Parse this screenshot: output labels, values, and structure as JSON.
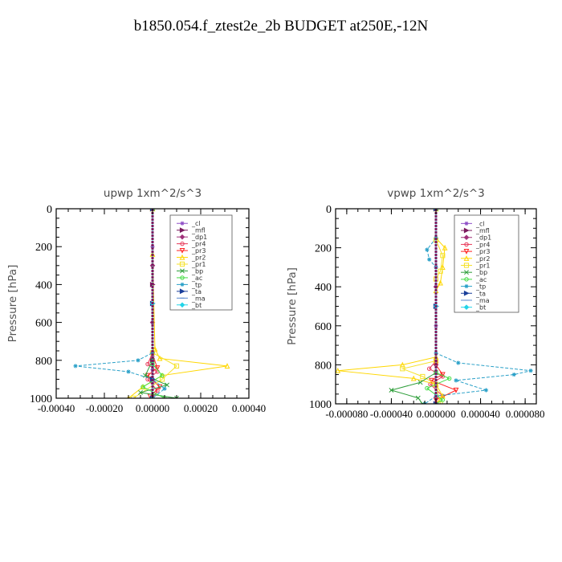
{
  "page_title": "b1850.054.f_ztest2e_2b  BUDGET at250E,-12N",
  "chart_data": [
    {
      "type": "line",
      "title": "upwp   1xm^2/s^3",
      "ylabel": "Pressure [hPa]",
      "xlabel": "",
      "xlim": [
        -0.0004,
        0.0004
      ],
      "ylim": [
        1000,
        0
      ],
      "x_ticks": [
        "-0.00040",
        "-0.00020",
        "0.00000",
        "0.00020",
        "0.00040"
      ],
      "y_ticks": [
        "0",
        "200",
        "400",
        "600",
        "800",
        "1000"
      ],
      "legend_position": "top-right",
      "series": [
        {
          "name": "_cl",
          "color": "#8f4fc7",
          "marker": "star",
          "points": [
            [
              0,
              0
            ],
            [
              0,
              200
            ],
            [
              0,
              400
            ],
            [
              0,
              600
            ],
            [
              0,
              780
            ],
            [
              0,
              850
            ],
            [
              0,
              920
            ],
            [
              0,
              1000
            ]
          ]
        },
        {
          "name": "_mfl",
          "color": "#7b1a5e",
          "marker": "tri-right",
          "points": [
            [
              0,
              0
            ],
            [
              0,
              400
            ],
            [
              0,
              800
            ],
            [
              0,
              1000
            ]
          ]
        },
        {
          "name": "_dp1",
          "color": "#a0307a",
          "marker": "diamond",
          "points": [
            [
              0,
              0
            ],
            [
              0,
              300
            ],
            [
              0,
              600
            ],
            [
              0,
              900
            ],
            [
              0,
              1000
            ]
          ]
        },
        {
          "name": "_pr4",
          "color": "#e83a5a",
          "marker": "circle",
          "points": [
            [
              0,
              0
            ],
            [
              0,
              760
            ],
            [
              -2e-05,
              820
            ],
            [
              2e-05,
              860
            ],
            [
              -2e-05,
              900
            ],
            [
              2e-05,
              960
            ],
            [
              0,
              1000
            ]
          ]
        },
        {
          "name": "_pr3",
          "color": "#ff2222",
          "marker": "tri-down",
          "points": [
            [
              0,
              0
            ],
            [
              0,
              770
            ],
            [
              2e-05,
              840
            ],
            [
              -2e-05,
              880
            ],
            [
              3e-05,
              940
            ],
            [
              -1e-05,
              990
            ]
          ]
        },
        {
          "name": "_pr2",
          "color": "#ffd700",
          "marker": "tri-up",
          "points": [
            [
              0,
              0
            ],
            [
              0,
              240
            ],
            [
              1e-05,
              740
            ],
            [
              3e-05,
              790
            ],
            [
              0.00031,
              830
            ],
            [
              4e-05,
              880
            ],
            [
              -4e-05,
              940
            ],
            [
              -0.0001,
              1000
            ]
          ]
        },
        {
          "name": "_pr1",
          "color": "#f5e22a",
          "marker": "square",
          "points": [
            [
              0,
              0
            ],
            [
              0,
              760
            ],
            [
              0.0001,
              830
            ],
            [
              4e-05,
              900
            ],
            [
              -8e-05,
              1000
            ]
          ]
        },
        {
          "name": "_bp",
          "color": "#2e9e3a",
          "marker": "cross",
          "points": [
            [
              0,
              0
            ],
            [
              0,
              800
            ],
            [
              -3e-05,
              880
            ],
            [
              6e-05,
              930
            ],
            [
              -5e-05,
              970
            ],
            [
              0.0001,
              1000
            ]
          ]
        },
        {
          "name": "_ac",
          "color": "#44dd44",
          "marker": "circle",
          "points": [
            [
              0,
              0
            ],
            [
              0,
              820
            ],
            [
              4e-05,
              880
            ],
            [
              -4e-05,
              940
            ],
            [
              5e-05,
              1000
            ]
          ]
        },
        {
          "name": "_tp",
          "color": "#2aa0c8",
          "marker": "star",
          "points": [
            [
              0,
              0
            ],
            [
              0,
              760
            ],
            [
              -6e-05,
              800
            ],
            [
              -0.00032,
              830
            ],
            [
              -0.0001,
              860
            ],
            [
              0,
              900
            ],
            [
              5e-05,
              950
            ],
            [
              0,
              1000
            ]
          ]
        },
        {
          "name": "_ta",
          "color": "#1a3f9a",
          "marker": "tri-right",
          "points": [
            [
              0,
              0
            ],
            [
              0,
              500
            ],
            [
              0,
              900
            ],
            [
              0,
              1000
            ]
          ]
        },
        {
          "name": "_ma",
          "color": "#5a8ad0",
          "marker": "dash",
          "points": [
            [
              0,
              0
            ],
            [
              0,
              1000
            ]
          ]
        },
        {
          "name": "_bt",
          "color": "#22d4e8",
          "marker": "diamond",
          "points": [
            [
              0,
              0
            ],
            [
              0,
              500
            ],
            [
              0,
              1000
            ]
          ]
        }
      ]
    },
    {
      "type": "line",
      "title": "vpwp   1xm^2/s^3",
      "ylabel": "Pressure [hPa]",
      "xlabel": "",
      "xlim": [
        -9e-05,
        9e-05
      ],
      "ylim": [
        1000,
        0
      ],
      "x_ticks": [
        "-0.000080",
        "-0.000040",
        "0.000000",
        "0.000040",
        "0.000080"
      ],
      "y_ticks": [
        "0",
        "200",
        "400",
        "600",
        "800",
        "1000"
      ],
      "legend_position": "top-right",
      "series": [
        {
          "name": "_cl",
          "color": "#8f4fc7",
          "marker": "star",
          "points": [
            [
              0,
              0
            ],
            [
              0,
              300
            ],
            [
              0,
              600
            ],
            [
              0,
              1000
            ]
          ]
        },
        {
          "name": "_mfl",
          "color": "#7b1a5e",
          "marker": "tri-right",
          "points": [
            [
              0,
              0
            ],
            [
              0,
              500
            ],
            [
              0,
              1000
            ]
          ]
        },
        {
          "name": "_dp1",
          "color": "#a0307a",
          "marker": "diamond",
          "points": [
            [
              0,
              0
            ],
            [
              0,
              400
            ],
            [
              0,
              800
            ],
            [
              0,
              1000
            ]
          ]
        },
        {
          "name": "_pr4",
          "color": "#e83a5a",
          "marker": "circle",
          "points": [
            [
              0,
              0
            ],
            [
              0,
              780
            ],
            [
              -6e-06,
              820
            ],
            [
              6e-06,
              860
            ],
            [
              -5e-06,
              900
            ],
            [
              6e-06,
              960
            ],
            [
              0,
              1000
            ]
          ]
        },
        {
          "name": "_pr3",
          "color": "#ff2222",
          "marker": "tri-down",
          "points": [
            [
              0,
              0
            ],
            [
              0,
              800
            ],
            [
              6e-06,
              850
            ],
            [
              -4e-06,
              880
            ],
            [
              1.8e-05,
              930
            ],
            [
              0,
              980
            ]
          ]
        },
        {
          "name": "_pr2",
          "color": "#ffd700",
          "marker": "tri-up",
          "points": [
            [
              0,
              0
            ],
            [
              0,
              150
            ],
            [
              8e-06,
              200
            ],
            [
              6e-06,
              300
            ],
            [
              4e-06,
              380
            ],
            [
              0,
              420
            ],
            [
              0,
              760
            ],
            [
              -3e-05,
              800
            ],
            [
              -8.8e-05,
              830
            ],
            [
              -2e-05,
              870
            ],
            [
              0,
              900
            ],
            [
              6e-06,
              960
            ],
            [
              0,
              1000
            ]
          ]
        },
        {
          "name": "_pr1",
          "color": "#f5e22a",
          "marker": "square",
          "points": [
            [
              0,
              0
            ],
            [
              0,
              160
            ],
            [
              6e-06,
              240
            ],
            [
              4e-06,
              320
            ],
            [
              0,
              360
            ],
            [
              0,
              780
            ],
            [
              -3e-05,
              820
            ],
            [
              -1.2e-05,
              860
            ],
            [
              0,
              900
            ],
            [
              4e-06,
              1000
            ]
          ]
        },
        {
          "name": "_bp",
          "color": "#2e9e3a",
          "marker": "cross",
          "points": [
            [
              0,
              0
            ],
            [
              0,
              840
            ],
            [
              -1.4e-05,
              890
            ],
            [
              -4e-05,
              930
            ],
            [
              -1.6e-05,
              970
            ],
            [
              -1.2e-05,
              1000
            ]
          ]
        },
        {
          "name": "_ac",
          "color": "#44dd44",
          "marker": "circle",
          "points": [
            [
              0,
              0
            ],
            [
              0,
              840
            ],
            [
              1.2e-05,
              870
            ],
            [
              -8e-06,
              920
            ],
            [
              6e-06,
              980
            ],
            [
              0,
              1000
            ]
          ]
        },
        {
          "name": "_tp",
          "color": "#2aa0c8",
          "marker": "star",
          "points": [
            [
              0,
              0
            ],
            [
              0,
              150
            ],
            [
              -8e-06,
              210
            ],
            [
              -6e-06,
              260
            ],
            [
              0,
              300
            ],
            [
              0,
              740
            ],
            [
              2e-05,
              790
            ],
            [
              8.5e-05,
              830
            ],
            [
              7e-05,
              850
            ],
            [
              1.8e-05,
              880
            ],
            [
              4.5e-05,
              930
            ],
            [
              0,
              960
            ],
            [
              -1e-05,
              1000
            ]
          ]
        },
        {
          "name": "_ta",
          "color": "#1a3f9a",
          "marker": "tri-right",
          "points": [
            [
              0,
              0
            ],
            [
              0,
              500
            ],
            [
              0,
              1000
            ]
          ]
        },
        {
          "name": "_ma",
          "color": "#5a8ad0",
          "marker": "dash",
          "points": [
            [
              0,
              0
            ],
            [
              0,
              1000
            ]
          ]
        },
        {
          "name": "_bt",
          "color": "#22d4e8",
          "marker": "diamond",
          "points": [
            [
              0,
              0
            ],
            [
              0,
              500
            ],
            [
              0,
              1000
            ]
          ]
        }
      ]
    }
  ]
}
